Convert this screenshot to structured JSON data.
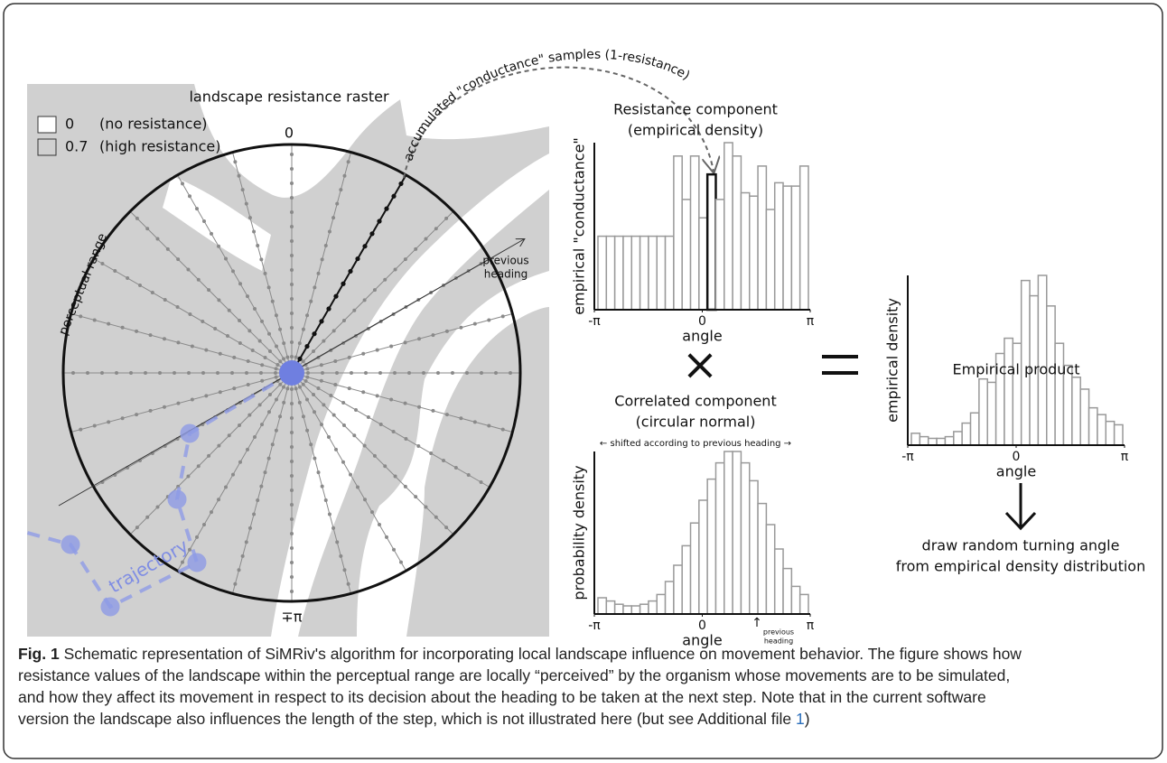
{
  "raster": {
    "title": "landscape resistance raster",
    "legend": [
      {
        "value": 0,
        "label": "(no resistance)",
        "color": "#ffffff"
      },
      {
        "value": 0.7,
        "label": "(high resistance)",
        "color": "#d0d0d0"
      }
    ],
    "top_label": "0",
    "bottom_label": "∓π",
    "range_label": "perceptual range",
    "heading_label": [
      "previous",
      "heading"
    ],
    "trajectory_label": "trajectory",
    "samples_label": "accumulated \"conductance\" samples (1-resistance)"
  },
  "chart_data": [
    {
      "type": "bar",
      "title": "Resistance component",
      "subtitle": "(empirical density)",
      "ylabel": "empirical \"conductance\"",
      "xlabel": "angle",
      "xlim": [
        -3.1416,
        3.1416
      ],
      "xticks": [
        {
          "value": -3.1416,
          "label": "-π"
        },
        0,
        {
          "value": 3.1416,
          "label": "π"
        }
      ],
      "ylim": [
        0,
        100
      ],
      "color": "#999999",
      "highlight_index": 13,
      "values": [
        44,
        44,
        44,
        44,
        44,
        44,
        44,
        44,
        44,
        92,
        66,
        92,
        55,
        81,
        66,
        100,
        92,
        70,
        68,
        86,
        60,
        76,
        74,
        74,
        86
      ]
    },
    {
      "type": "bar",
      "title": "Correlated component",
      "subtitle": "(circular normal)",
      "note": "← shifted according to previous heading →",
      "annotation": [
        "previous",
        "heading"
      ],
      "ylabel": "probability density",
      "xlabel": "angle",
      "xlim": [
        -3.1416,
        3.1416
      ],
      "xticks": [
        {
          "value": -3.1416,
          "label": "-π"
        },
        0,
        {
          "value": 3.1416,
          "label": "π"
        }
      ],
      "ylim": [
        0,
        100
      ],
      "color": "#999999",
      "values": [
        10,
        8,
        6,
        5,
        5,
        6,
        8,
        12,
        20,
        30,
        42,
        56,
        70,
        83,
        93,
        100,
        100,
        93,
        82,
        68,
        55,
        40,
        28,
        17,
        12
      ]
    },
    {
      "type": "bar",
      "title": "Empirical product",
      "ylabel": "empirical density",
      "xlabel": "angle",
      "xlim": [
        -3.1416,
        3.1416
      ],
      "xticks": [
        {
          "value": -3.1416,
          "label": "-π"
        },
        0,
        {
          "value": 3.1416,
          "label": "π"
        }
      ],
      "ylim": [
        0,
        100
      ],
      "color": "#999999",
      "values": [
        7,
        5,
        4,
        4,
        5,
        8,
        13,
        19,
        39,
        37,
        54,
        63,
        60,
        97,
        88,
        100,
        82,
        60,
        47,
        40,
        33,
        22,
        18,
        14,
        12
      ],
      "result": [
        "draw random turning angle",
        "from empirical density distribution"
      ]
    }
  ],
  "caption": {
    "label": "Fig. 1",
    "lines": [
      " Schematic representation of SiMRiv's algorithm for incorporating local landscape influence on movement behavior. The figure shows how",
      "resistance values of the landscape within the perceptual range are locally “perceived” by the organism whose movements are to be simulated,",
      "and how they affect its movement in respect to its decision about the heading to be taken at the next step. Note that in the current software",
      "version the landscape also influences the length of the step, which is not illustrated here (but see Additional file "
    ],
    "link": "1",
    "end": ")"
  }
}
